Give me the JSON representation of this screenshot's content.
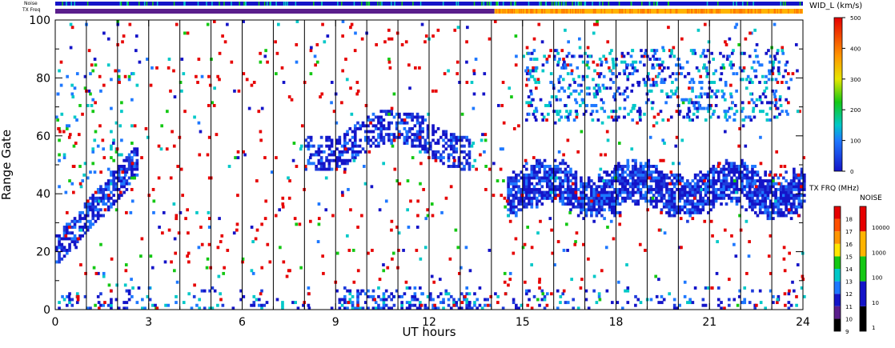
{
  "chart_data": {
    "type": "heatmap",
    "xlabel": "UT hours",
    "ylabel": "Range Gate",
    "xlim": [
      0,
      24
    ],
    "ylim": [
      0,
      100
    ],
    "x_ticks": [
      "0",
      "3",
      "6",
      "9",
      "12",
      "15",
      "18",
      "21",
      "24"
    ],
    "y_ticks": [
      "0",
      "20",
      "40",
      "60",
      "80",
      "100"
    ],
    "top_bars": {
      "noise_label": "Noise",
      "txfreq_label": "TX Freq",
      "txfreq_switch_hour": 14.1
    },
    "scan_boundaries_hours": [
      1,
      2,
      3,
      4,
      5,
      6,
      7,
      8,
      9,
      10,
      11,
      12,
      13,
      14,
      15,
      16,
      17,
      18,
      19,
      20,
      21,
      22,
      23
    ],
    "colorbars": {
      "width": {
        "title": "WID_L (km/s)",
        "ticks": [
          "0",
          "100",
          "200",
          "300",
          "400",
          "500"
        ]
      },
      "tx_freq": {
        "title": "TX FRQ (MHz)",
        "ticks": [
          "9",
          "10",
          "11",
          "12",
          "13",
          "14",
          "15",
          "16",
          "17",
          "18"
        ],
        "colors": [
          "#000000",
          "#5a1e8c",
          "#1414c8",
          "#1e78ff",
          "#00c8c8",
          "#14c814",
          "#ffe600",
          "#ff9600",
          "#ff5000",
          "#e60000"
        ]
      },
      "noise": {
        "title": "NOISE",
        "ticks": [
          "1",
          "10",
          "100",
          "1000",
          "10000"
        ],
        "colors": [
          "#000000",
          "#1414c8",
          "#14c814",
          "#ffb400",
          "#e60000"
        ]
      }
    },
    "regions": [
      {
        "feature": "main echo band",
        "hours": [
          14.5,
          24
        ],
        "gates": [
          30,
          50
        ]
      },
      {
        "feature": "echo patches",
        "hours": [
          8,
          13.2
        ],
        "gates": [
          45,
          70
        ]
      },
      {
        "feature": "early echoes",
        "hours": [
          0,
          2.5
        ],
        "gates": [
          17,
          80
        ]
      },
      {
        "feature": "ground scatter",
        "hours": [
          0,
          24
        ],
        "gates": [
          0,
          8
        ]
      }
    ]
  }
}
